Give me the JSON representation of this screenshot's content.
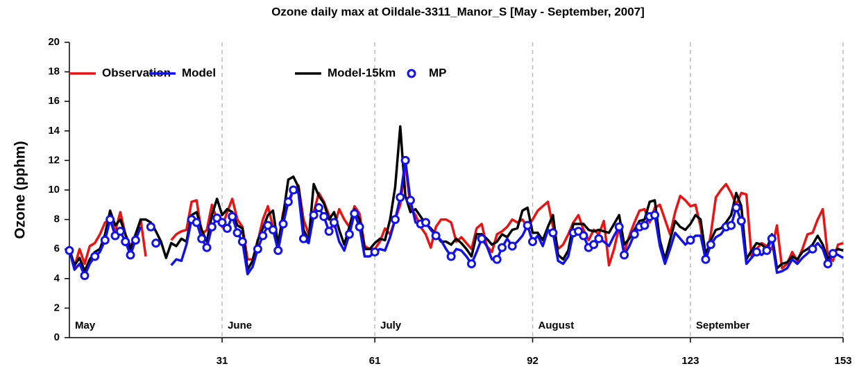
{
  "chart_data": {
    "type": "line",
    "title": "Ozone daily max at  Oildale-3311_Manor_S [May - September, 2007]",
    "y_label": "Ozone (pphm)",
    "month_labels": [
      "May",
      "June",
      "July",
      "August",
      "September"
    ],
    "xlim": [
      1,
      153
    ],
    "xticks": [
      31,
      61,
      92,
      123,
      153
    ],
    "ylim": [
      0,
      20
    ],
    "yticks": [
      0,
      2,
      4,
      6,
      8,
      10,
      12,
      14,
      16,
      18,
      20
    ],
    "grid": "x-dashed",
    "legend": "top-left",
    "series": [
      {
        "name": "Observation",
        "color": "#ee1111",
        "values": [
          6.0,
          4.8,
          6.0,
          5.0,
          6.2,
          6.4,
          7.0,
          7.8,
          8.0,
          7.2,
          8.5,
          7.0,
          6.2,
          6.8,
          8.0,
          5.5,
          null,
          null,
          null,
          null,
          6.6,
          7.0,
          7.2,
          7.3,
          9.2,
          9.3,
          7.0,
          7.3,
          9.0,
          8.0,
          7.5,
          8.5,
          9.4,
          8.0,
          7.5,
          5.3,
          5.3,
          6.5,
          8.0,
          8.9,
          7.5,
          6.3,
          8.5,
          9.0,
          10.0,
          10.3,
          8.0,
          7.0,
          8.5,
          9.8,
          9.2,
          8.3,
          7.5,
          8.7,
          8.0,
          7.5,
          8.9,
          8.4,
          6.2,
          6.0,
          6.0,
          6.5,
          7.4,
          7.0,
          8.0,
          9.0,
          11.8,
          8.8,
          8.3,
          7.5,
          7.0,
          6.1,
          7.5,
          8.0,
          8.0,
          7.8,
          6.5,
          6.8,
          6.4,
          6.0,
          7.4,
          7.7,
          6.2,
          5.8,
          7.0,
          7.2,
          7.5,
          8.0,
          7.8,
          8.0,
          7.5,
          8.0,
          8.6,
          8.9,
          9.2,
          7.5,
          6.0,
          6.3,
          7.0,
          7.8,
          8.3,
          7.3,
          6.6,
          7.3,
          7.0,
          7.9,
          4.9,
          6.0,
          7.5,
          5.8,
          6.9,
          7.8,
          8.6,
          8.7,
          7.8,
          8.8,
          9.0,
          8.0,
          7.0,
          8.5,
          9.6,
          9.3,
          8.9,
          9.0,
          7.5,
          5.1,
          7.0,
          9.5,
          10.0,
          10.4,
          9.8,
          9.0,
          9.8,
          9.7,
          5.5,
          6.0,
          6.4,
          6.2,
          6.0,
          7.6,
          4.7,
          5.0,
          5.8,
          5.2,
          6.0,
          7.0,
          7.1,
          8.0,
          8.7,
          5.5,
          5.2,
          6.3,
          6.4
        ]
      },
      {
        "name": "Model",
        "color": "#1111ee",
        "values": [
          5.9,
          4.6,
          5.0,
          4.2,
          5.0,
          5.5,
          5.8,
          6.6,
          8.0,
          6.9,
          7.2,
          6.5,
          5.6,
          6.6,
          7.5,
          null,
          null,
          null,
          null,
          null,
          4.9,
          5.3,
          5.2,
          6.3,
          8.0,
          7.8,
          6.7,
          6.1,
          7.5,
          8.1,
          7.8,
          7.4,
          8.2,
          7.1,
          6.5,
          4.3,
          4.8,
          6.0,
          6.9,
          7.6,
          7.3,
          5.9,
          7.7,
          9.2,
          10.0,
          9.8,
          6.7,
          6.4,
          8.3,
          8.8,
          8.2,
          7.2,
          7.8,
          6.5,
          5.9,
          7.0,
          8.4,
          7.5,
          5.5,
          5.5,
          5.8,
          6.0,
          5.9,
          6.8,
          8.0,
          9.5,
          12.0,
          9.3,
          7.8,
          7.7,
          7.8,
          7.3,
          6.9,
          6.6,
          6.0,
          5.5,
          6.0,
          5.9,
          5.5,
          5.0,
          5.8,
          6.7,
          6.2,
          5.3,
          5.3,
          6.1,
          6.7,
          6.2,
          6.5,
          6.9,
          7.6,
          6.5,
          6.9,
          6.2,
          7.3,
          7.1,
          5.2,
          5.0,
          5.5,
          7.1,
          7.2,
          6.9,
          6.1,
          6.3,
          6.7,
          6.5,
          6.2,
          6.9,
          7.5,
          5.6,
          6.2,
          7.0,
          7.5,
          7.6,
          8.2,
          8.3,
          6.2,
          5.0,
          6.0,
          7.1,
          6.7,
          6.3,
          6.6,
          6.9,
          6.9,
          5.3,
          6.3,
          6.8,
          7.0,
          7.5,
          7.6,
          8.8,
          7.9,
          5.0,
          5.4,
          5.8,
          5.6,
          5.9,
          6.7,
          4.4,
          4.5,
          4.7,
          5.3,
          5.0,
          5.4,
          5.7,
          6.0,
          6.4,
          6.0,
          5.0,
          5.7,
          5.6,
          5.4
        ]
      },
      {
        "name": "Model-15km",
        "color": "#000000",
        "values": [
          6.0,
          4.9,
          5.4,
          4.5,
          5.3,
          5.8,
          6.0,
          7.0,
          8.6,
          7.6,
          8.0,
          7.0,
          6.0,
          7.0,
          8.0,
          8.0,
          7.8,
          7.2,
          6.5,
          5.4,
          6.4,
          6.2,
          6.7,
          6.5,
          8.3,
          8.5,
          7.3,
          6.5,
          8.3,
          9.4,
          8.3,
          8.7,
          8.5,
          7.6,
          7.4,
          4.6,
          5.2,
          6.6,
          7.4,
          8.3,
          8.6,
          6.3,
          8.3,
          10.7,
          10.9,
          10.2,
          7.3,
          6.6,
          10.4,
          9.6,
          9.1,
          8.0,
          8.5,
          7.3,
          6.3,
          7.5,
          8.7,
          8.0,
          6.0,
          6.0,
          6.4,
          6.7,
          6.6,
          8.0,
          10.2,
          14.3,
          9.6,
          8.5,
          8.7,
          8.2,
          7.7,
          7.4,
          7.0,
          6.5,
          6.5,
          6.3,
          6.7,
          6.4,
          6.0,
          5.5,
          7.0,
          7.0,
          6.7,
          6.3,
          6.5,
          7.0,
          6.8,
          7.3,
          7.4,
          8.6,
          8.8,
          7.1,
          7.1,
          6.6,
          7.5,
          8.3,
          5.6,
          5.3,
          5.9,
          7.7,
          7.7,
          7.7,
          7.3,
          7.2,
          7.3,
          7.2,
          7.1,
          7.7,
          8.3,
          6.3,
          6.7,
          7.3,
          7.9,
          8.0,
          9.2,
          9.3,
          6.6,
          5.3,
          6.6,
          7.9,
          7.5,
          7.3,
          7.7,
          8.3,
          8.0,
          5.6,
          6.6,
          7.3,
          7.4,
          7.8,
          8.3,
          9.8,
          8.9,
          5.3,
          5.9,
          6.4,
          6.3,
          6.0,
          7.0,
          4.7,
          5.0,
          5.1,
          5.5,
          5.3,
          5.8,
          6.0,
          6.3,
          6.9,
          6.3,
          5.3,
          5.8,
          6.0,
          5.9
        ]
      },
      {
        "name": "MP",
        "color": "#1111ee",
        "marker": "circle",
        "x": [
          1,
          4,
          6,
          8,
          9,
          10,
          11,
          12,
          13,
          14,
          17,
          18,
          25,
          26,
          27,
          28,
          29,
          30,
          31,
          32,
          33,
          34,
          35,
          38,
          39,
          40,
          41,
          42,
          43,
          44,
          45,
          47,
          49,
          50,
          51,
          52,
          53,
          56,
          57,
          58,
          61,
          65,
          66,
          67,
          68,
          70,
          71,
          73,
          76,
          80,
          82,
          85,
          86,
          88,
          91,
          92,
          96,
          100,
          101,
          102,
          103,
          104,
          105,
          109,
          110,
          112,
          113,
          114,
          115,
          116,
          123,
          126,
          127,
          130,
          131,
          132,
          133,
          136,
          138,
          139,
          147,
          150,
          151
        ],
        "values": [
          5.9,
          4.2,
          5.5,
          6.6,
          8.0,
          6.9,
          7.2,
          6.5,
          5.6,
          6.6,
          7.5,
          6.4,
          8.0,
          7.8,
          6.7,
          6.1,
          7.5,
          8.1,
          7.8,
          7.4,
          8.2,
          7.1,
          6.5,
          6.0,
          6.9,
          7.6,
          7.3,
          5.9,
          7.7,
          9.2,
          10.0,
          6.7,
          8.3,
          8.8,
          8.2,
          7.2,
          7.8,
          7.0,
          8.4,
          7.5,
          5.8,
          8.0,
          9.5,
          12.0,
          9.3,
          7.7,
          7.8,
          6.9,
          5.5,
          5.0,
          6.7,
          5.3,
          6.1,
          6.2,
          7.6,
          6.5,
          7.1,
          7.1,
          7.2,
          6.9,
          6.1,
          6.3,
          6.7,
          7.5,
          5.6,
          7.0,
          7.5,
          7.6,
          8.2,
          8.3,
          6.6,
          5.3,
          6.3,
          7.5,
          7.6,
          8.8,
          7.9,
          5.8,
          5.9,
          6.7,
          6.0,
          5.0,
          5.7
        ]
      }
    ]
  }
}
